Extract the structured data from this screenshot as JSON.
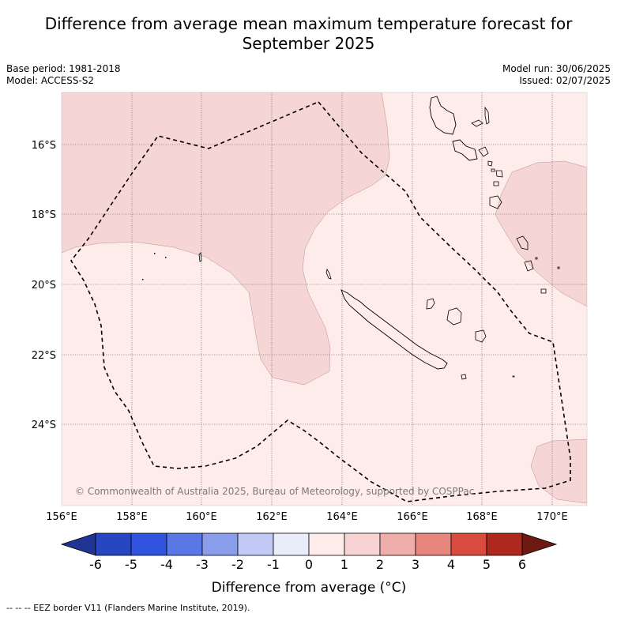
{
  "title_line1": "Difference from average mean maximum temperature forecast for",
  "title_line2": "September 2025",
  "base_period": "Base period: 1981-2018",
  "model": "Model: ACCESS-S2",
  "model_run": "Model run: 30/06/2025",
  "issued": "Issued: 02/07/2025",
  "copyright": "© Commonwealth of Australia 2025, Bureau of Meteorology, supported by COSPPac",
  "footer": "--  --  -- EEZ border V11 (Flanders Marine Institute, 2019).",
  "lon_labels": [
    "156°E",
    "158°E",
    "160°E",
    "162°E",
    "164°E",
    "166°E",
    "168°E",
    "170°E"
  ],
  "lat_labels": [
    "16°S",
    "18°S",
    "20°S",
    "22°S",
    "24°S"
  ],
  "colorbar": {
    "title": "Difference from average (°C)",
    "ticks": [
      "-6",
      "-5",
      "-4",
      "-3",
      "-2",
      "-1",
      "0",
      "1",
      "2",
      "3",
      "4",
      "5",
      "6"
    ],
    "colors": [
      "#1f3493",
      "#2946c2",
      "#3154e0",
      "#5a77e6",
      "#8a9deb",
      "#c1c9f4",
      "#e9ecfa",
      "#fdecea",
      "#f7d4d3",
      "#f0aeab",
      "#e7857f",
      "#d94a3f",
      "#ae2820",
      "#6e1a14"
    ]
  },
  "colors": {
    "weak_warm": "#fdecea",
    "moderate_warm": "#f6d6d5",
    "eez_border": "#000000",
    "grid": "#555555"
  }
}
